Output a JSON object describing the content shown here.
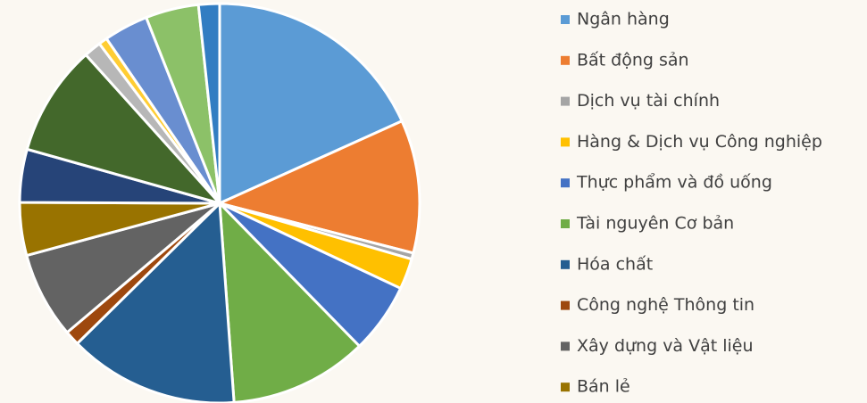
{
  "chart_data": {
    "type": "pie",
    "categories": [
      "Ngân hàng",
      "Bất động sản",
      "Dịch vụ tài chính",
      "Hàng & Dịch vụ Công nghiệp",
      "Thực phẩm và đồ uống",
      "Tài nguyên Cơ bản",
      "Hóa chất",
      "Công nghệ Thông tin",
      "Xây dựng và Vật liệu",
      "Bán lẻ",
      null,
      null,
      null,
      null,
      null,
      null,
      null
    ],
    "values": [
      18.3,
      10.8,
      0.5,
      2.5,
      5.7,
      11.2,
      13.8,
      1.2,
      7.0,
      4.3,
      4.3,
      9.0,
      1.4,
      0.7,
      3.6,
      4.3,
      1.7
    ],
    "colors": [
      "#5b9bd5",
      "#ed7d31",
      "#a5a5a5",
      "#ffc000",
      "#4472c4",
      "#70ad47",
      "#255e91",
      "#9e480e",
      "#636363",
      "#997300",
      "#264478",
      "#43682b",
      "#b7b7b7",
      "#ffcd33",
      "#698ed0",
      "#8cc168",
      "#327dc2"
    ]
  }
}
